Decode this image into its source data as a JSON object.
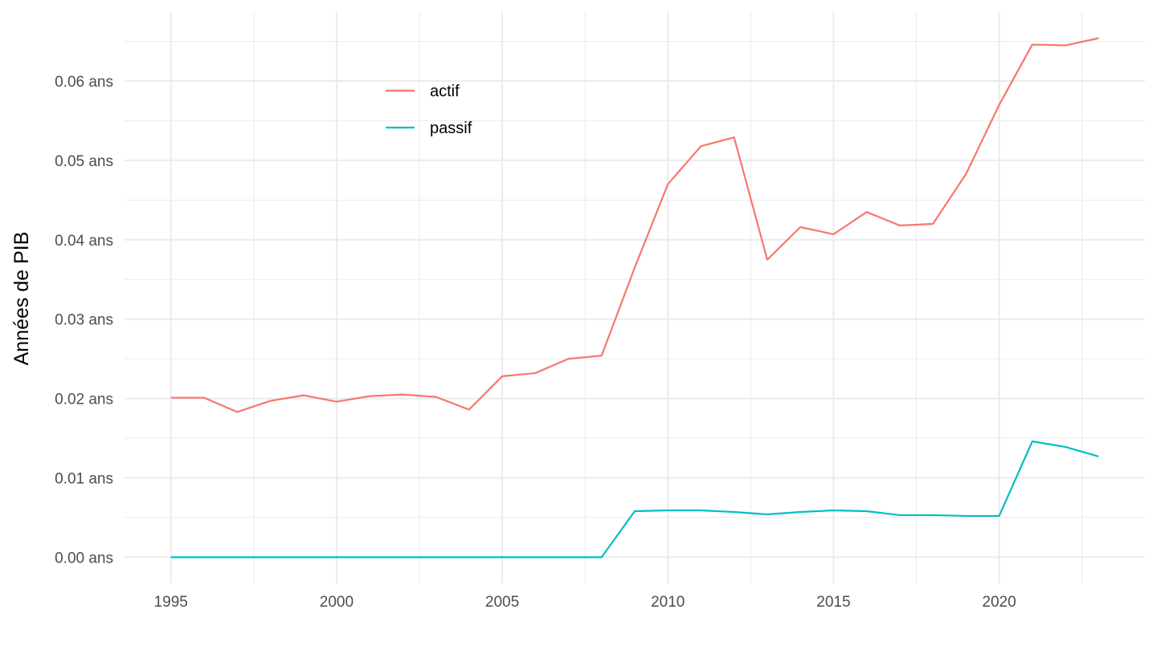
{
  "chart_data": {
    "type": "line",
    "title": "",
    "xlabel": "",
    "ylabel": "Années de PIB",
    "x": [
      1995,
      1996,
      1997,
      1998,
      1999,
      2000,
      2001,
      2002,
      2003,
      2004,
      2005,
      2006,
      2007,
      2008,
      2009,
      2010,
      2011,
      2012,
      2013,
      2014,
      2015,
      2016,
      2017,
      2018,
      2019,
      2020,
      2021,
      2022,
      2023
    ],
    "series": [
      {
        "name": "actif",
        "color": "#F8766D",
        "values": [
          0.0201,
          0.0201,
          0.0183,
          0.0197,
          0.0204,
          0.0196,
          0.0203,
          0.0205,
          0.0202,
          0.0186,
          0.0228,
          0.0232,
          0.025,
          0.0254,
          0.0365,
          0.047,
          0.0518,
          0.0529,
          0.0375,
          0.0416,
          0.0407,
          0.0435,
          0.0418,
          0.042,
          0.0483,
          0.057,
          0.0646,
          0.0645,
          0.0654
        ]
      },
      {
        "name": "passif",
        "color": "#00BFC4",
        "values": [
          0.0,
          0.0,
          0.0,
          0.0,
          0.0,
          0.0,
          0.0,
          0.0,
          0.0,
          0.0,
          0.0,
          0.0,
          0.0,
          0.0,
          0.0058,
          0.0059,
          0.0059,
          0.0057,
          0.0054,
          0.0057,
          0.0059,
          0.0058,
          0.0053,
          0.0053,
          0.0052,
          0.0052,
          0.0146,
          0.0139,
          0.0127
        ]
      }
    ],
    "x_ticks": [
      1995,
      2000,
      2005,
      2010,
      2015,
      2020
    ],
    "x_tick_labels": [
      "1995",
      "2000",
      "2005",
      "2010",
      "2015",
      "2020"
    ],
    "y_ticks": [
      0.0,
      0.01,
      0.02,
      0.03,
      0.04,
      0.05,
      0.06
    ],
    "y_tick_labels": [
      "0.00 ans",
      "0.01 ans",
      "0.02 ans",
      "0.03 ans",
      "0.04 ans",
      "0.05 ans",
      "0.06 ans"
    ],
    "xlim": [
      1993.6,
      2024.4
    ],
    "ylim": [
      -0.0033,
      0.0687
    ],
    "grid": true,
    "legend_position": "inside-top-left"
  }
}
